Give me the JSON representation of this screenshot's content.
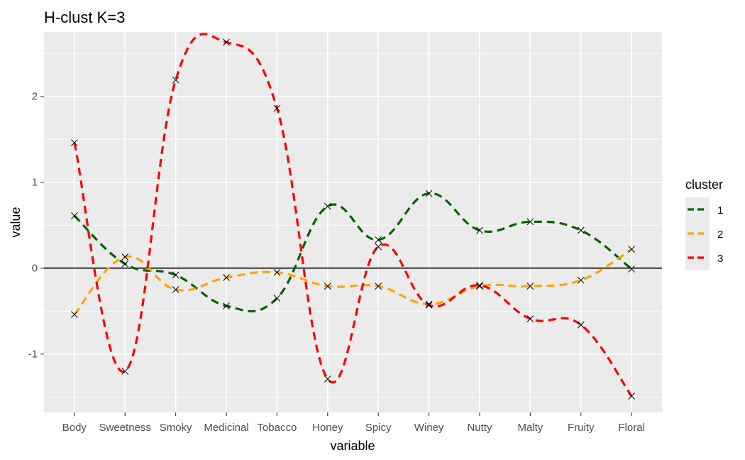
{
  "chart_data": {
    "type": "line",
    "title": "H-clust K=3",
    "xlabel": "variable",
    "ylabel": "value",
    "categories": [
      "Body",
      "Sweetness",
      "Smoky",
      "Medicinal",
      "Tobacco",
      "Honey",
      "Spicy",
      "Winey",
      "Nutty",
      "Malty",
      "Fruity",
      "Floral"
    ],
    "ylim": [
      -1.68,
      2.75
    ],
    "yticks": [
      -1,
      0,
      1,
      2
    ],
    "hline": 0,
    "grid": true,
    "legend": {
      "title": "cluster",
      "position": "right"
    },
    "series": [
      {
        "name": "1",
        "color": "#006400",
        "values": [
          0.61,
          0.05,
          -0.08,
          -0.44,
          -0.35,
          0.72,
          0.33,
          0.87,
          0.44,
          0.54,
          0.44,
          -0.01
        ]
      },
      {
        "name": "2",
        "color": "#FFA500",
        "values": [
          -0.54,
          0.13,
          -0.25,
          -0.11,
          -0.05,
          -0.21,
          -0.21,
          -0.42,
          -0.21,
          -0.21,
          -0.14,
          0.22
        ]
      },
      {
        "name": "3",
        "color": "#FF0000",
        "values": [
          1.46,
          -1.2,
          2.19,
          2.63,
          1.86,
          -1.29,
          0.25,
          -0.43,
          -0.2,
          -0.59,
          -0.66,
          -1.49
        ]
      }
    ]
  }
}
